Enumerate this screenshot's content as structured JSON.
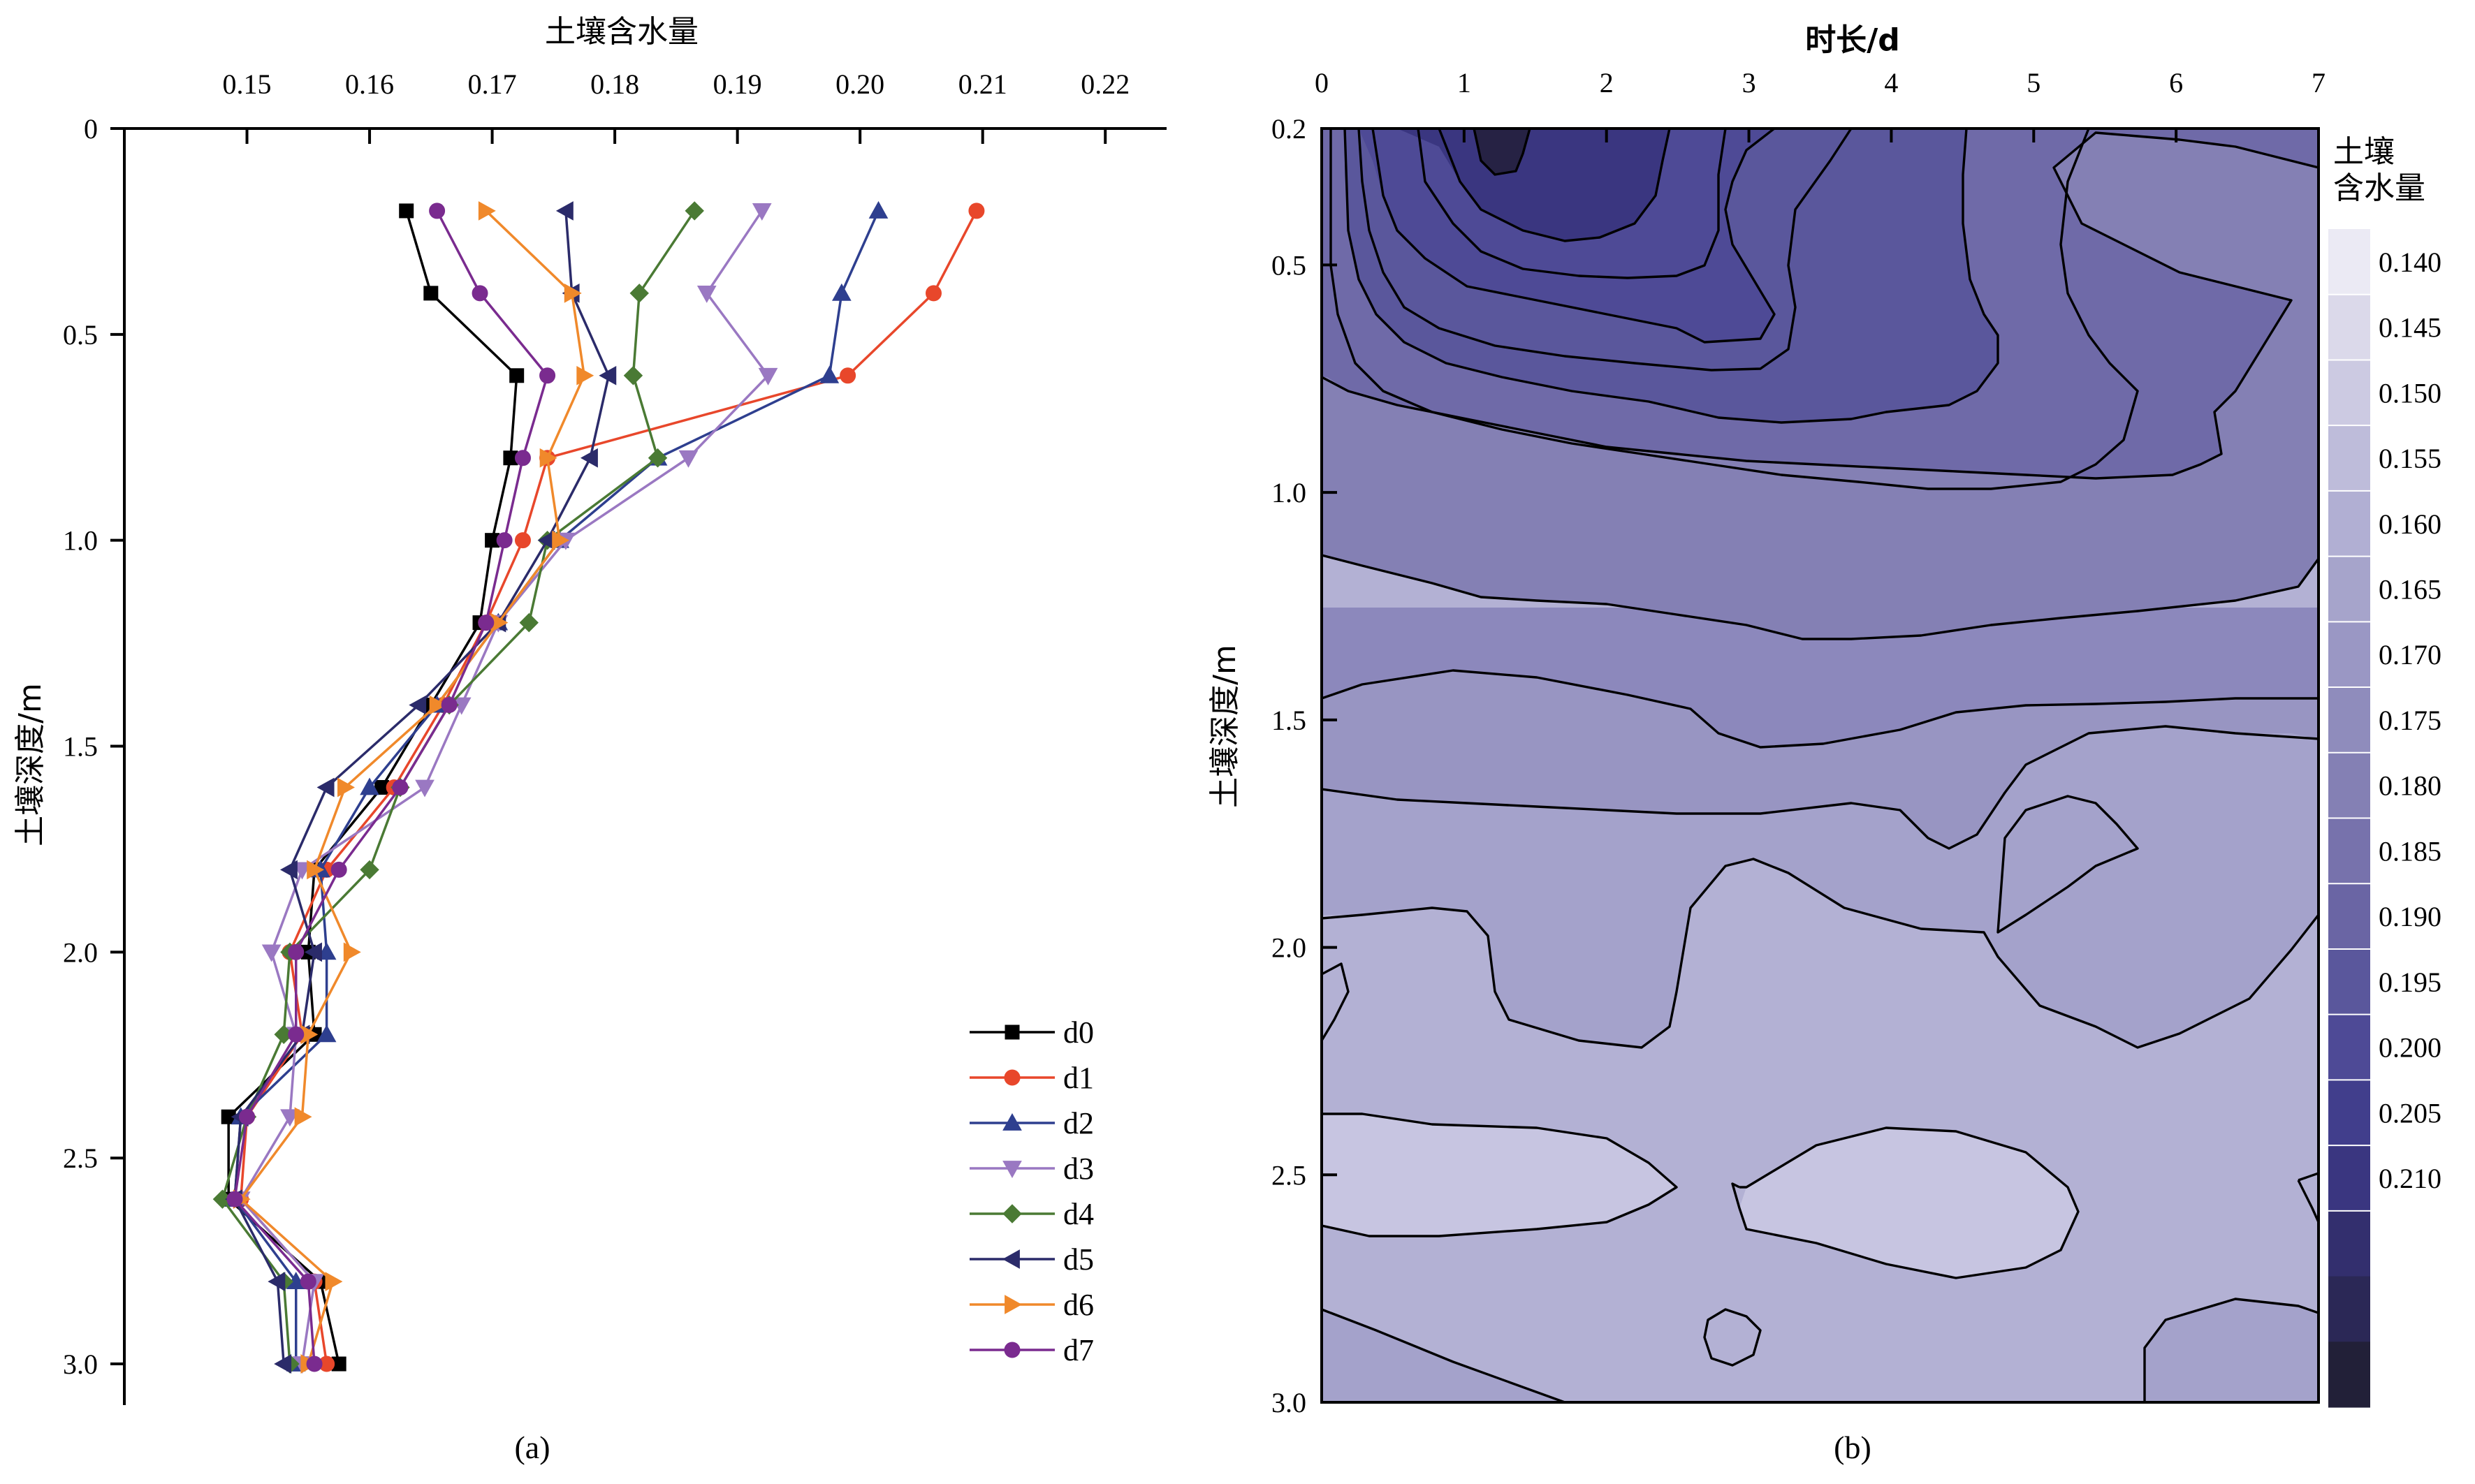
{
  "chart_data": [
    {
      "type": "line",
      "panel_label": "(a)",
      "xlabel": "土壤含水量",
      "ylabel": "土壤深度/m",
      "xlim": [
        0.14,
        0.225
      ],
      "ylim": [
        0,
        3.1
      ],
      "x_axis_position": "top",
      "y_inverted": true,
      "xticks": [
        "0.15",
        "0.16",
        "0.17",
        "0.18",
        "0.19",
        "0.20",
        "0.21",
        "0.22"
      ],
      "yticks": [
        "0",
        "0.5",
        "1.0",
        "1.5",
        "2.0",
        "2.5",
        "3.0"
      ],
      "legend_position": "lower-right",
      "depth": [
        0.2,
        0.4,
        0.6,
        0.8,
        1.0,
        1.2,
        1.4,
        1.6,
        1.8,
        2.0,
        2.2,
        2.4,
        2.6,
        2.8,
        3.0
      ],
      "series": [
        {
          "name": "d0",
          "color": "#000000",
          "marker": "square",
          "values": [
            0.163,
            0.165,
            0.172,
            0.1715,
            0.17,
            0.169,
            0.165,
            0.161,
            0.1555,
            0.155,
            0.1555,
            0.1485,
            0.1485,
            0.156,
            0.1575
          ]
        },
        {
          "name": "d1",
          "color": "#e8472b",
          "marker": "circle",
          "values": [
            0.2095,
            0.206,
            0.199,
            0.1745,
            0.1725,
            0.1695,
            0.166,
            0.162,
            0.1565,
            0.1535,
            0.1545,
            0.15,
            0.1495,
            0.1555,
            0.1565
          ]
        },
        {
          "name": "d2",
          "color": "#2e3f8f",
          "marker": "triangle-up",
          "values": [
            0.2015,
            0.1985,
            0.1975,
            0.1835,
            0.1755,
            0.1705,
            0.1655,
            0.16,
            0.156,
            0.1565,
            0.1565,
            0.1495,
            0.149,
            0.154,
            0.154
          ]
        },
        {
          "name": "d3",
          "color": "#9a78c2",
          "marker": "triangle-down",
          "values": [
            0.192,
            0.1875,
            0.1925,
            0.186,
            0.176,
            0.1705,
            0.1675,
            0.1645,
            0.1545,
            0.152,
            0.154,
            0.1535,
            0.1495,
            0.1555,
            0.1545
          ]
        },
        {
          "name": "d4",
          "color": "#4a7a34",
          "marker": "diamond",
          "values": [
            0.1865,
            0.182,
            0.1815,
            0.1835,
            0.1745,
            0.173,
            0.1665,
            0.1625,
            0.16,
            0.1535,
            0.153,
            0.15,
            0.148,
            0.153,
            0.1535
          ]
        },
        {
          "name": "d5",
          "color": "#2b2b6a",
          "marker": "triangle-left",
          "values": [
            0.176,
            0.1765,
            0.1795,
            0.178,
            0.1745,
            0.1705,
            0.164,
            0.1565,
            0.1535,
            0.1555,
            0.1545,
            0.1495,
            0.149,
            0.1525,
            0.153
          ]
        },
        {
          "name": "d6",
          "color": "#f0892b",
          "marker": "triangle-right",
          "values": [
            0.1695,
            0.1765,
            0.1775,
            0.1745,
            0.1755,
            0.1705,
            0.1655,
            0.158,
            0.1555,
            0.1585,
            0.155,
            0.1545,
            0.1495,
            0.157,
            0.155
          ]
        },
        {
          "name": "d7",
          "color": "#7a2b8f",
          "marker": "circle",
          "values": [
            0.1655,
            0.169,
            0.1745,
            0.1725,
            0.171,
            0.1695,
            0.1665,
            0.1625,
            0.1575,
            0.154,
            0.154,
            0.15,
            0.149,
            0.155,
            0.1555
          ]
        }
      ]
    },
    {
      "type": "heatmap",
      "subtype": "filled-contour",
      "panel_label": "(b)",
      "xlabel": "时长/d",
      "ylabel": "土壤深度/m",
      "colorbar_title": "土壤\n含水量",
      "xlim": [
        0,
        7
      ],
      "ylim": [
        0.2,
        3.0
      ],
      "x_axis_position": "top",
      "y_inverted": true,
      "xticks": [
        "0",
        "1",
        "2",
        "3",
        "4",
        "5",
        "6",
        "7"
      ],
      "yticks": [
        "0.2",
        "0.5",
        "1.0",
        "1.5",
        "2.0",
        "2.5",
        "3.0"
      ],
      "colorbar_ticks": [
        "0.140",
        "0.145",
        "0.150",
        "0.155",
        "0.160",
        "0.165",
        "0.170",
        "0.175",
        "0.180",
        "0.185",
        "0.190",
        "0.195",
        "0.200",
        "0.205",
        "0.210"
      ],
      "colorbar_colors": [
        "#ebeaf4",
        "#dbd9ea",
        "#cccae2",
        "#bebcda",
        "#b1afd3",
        "#a6a4cb",
        "#9a97c4",
        "#8f8cbc",
        "#8480b4",
        "#7772ac",
        "#6a65a4",
        "#5a579c",
        "#4e4a96",
        "#413e8c",
        "#3a3680",
        "#332f6e",
        "#2b2856",
        "#222038"
      ]
    }
  ]
}
